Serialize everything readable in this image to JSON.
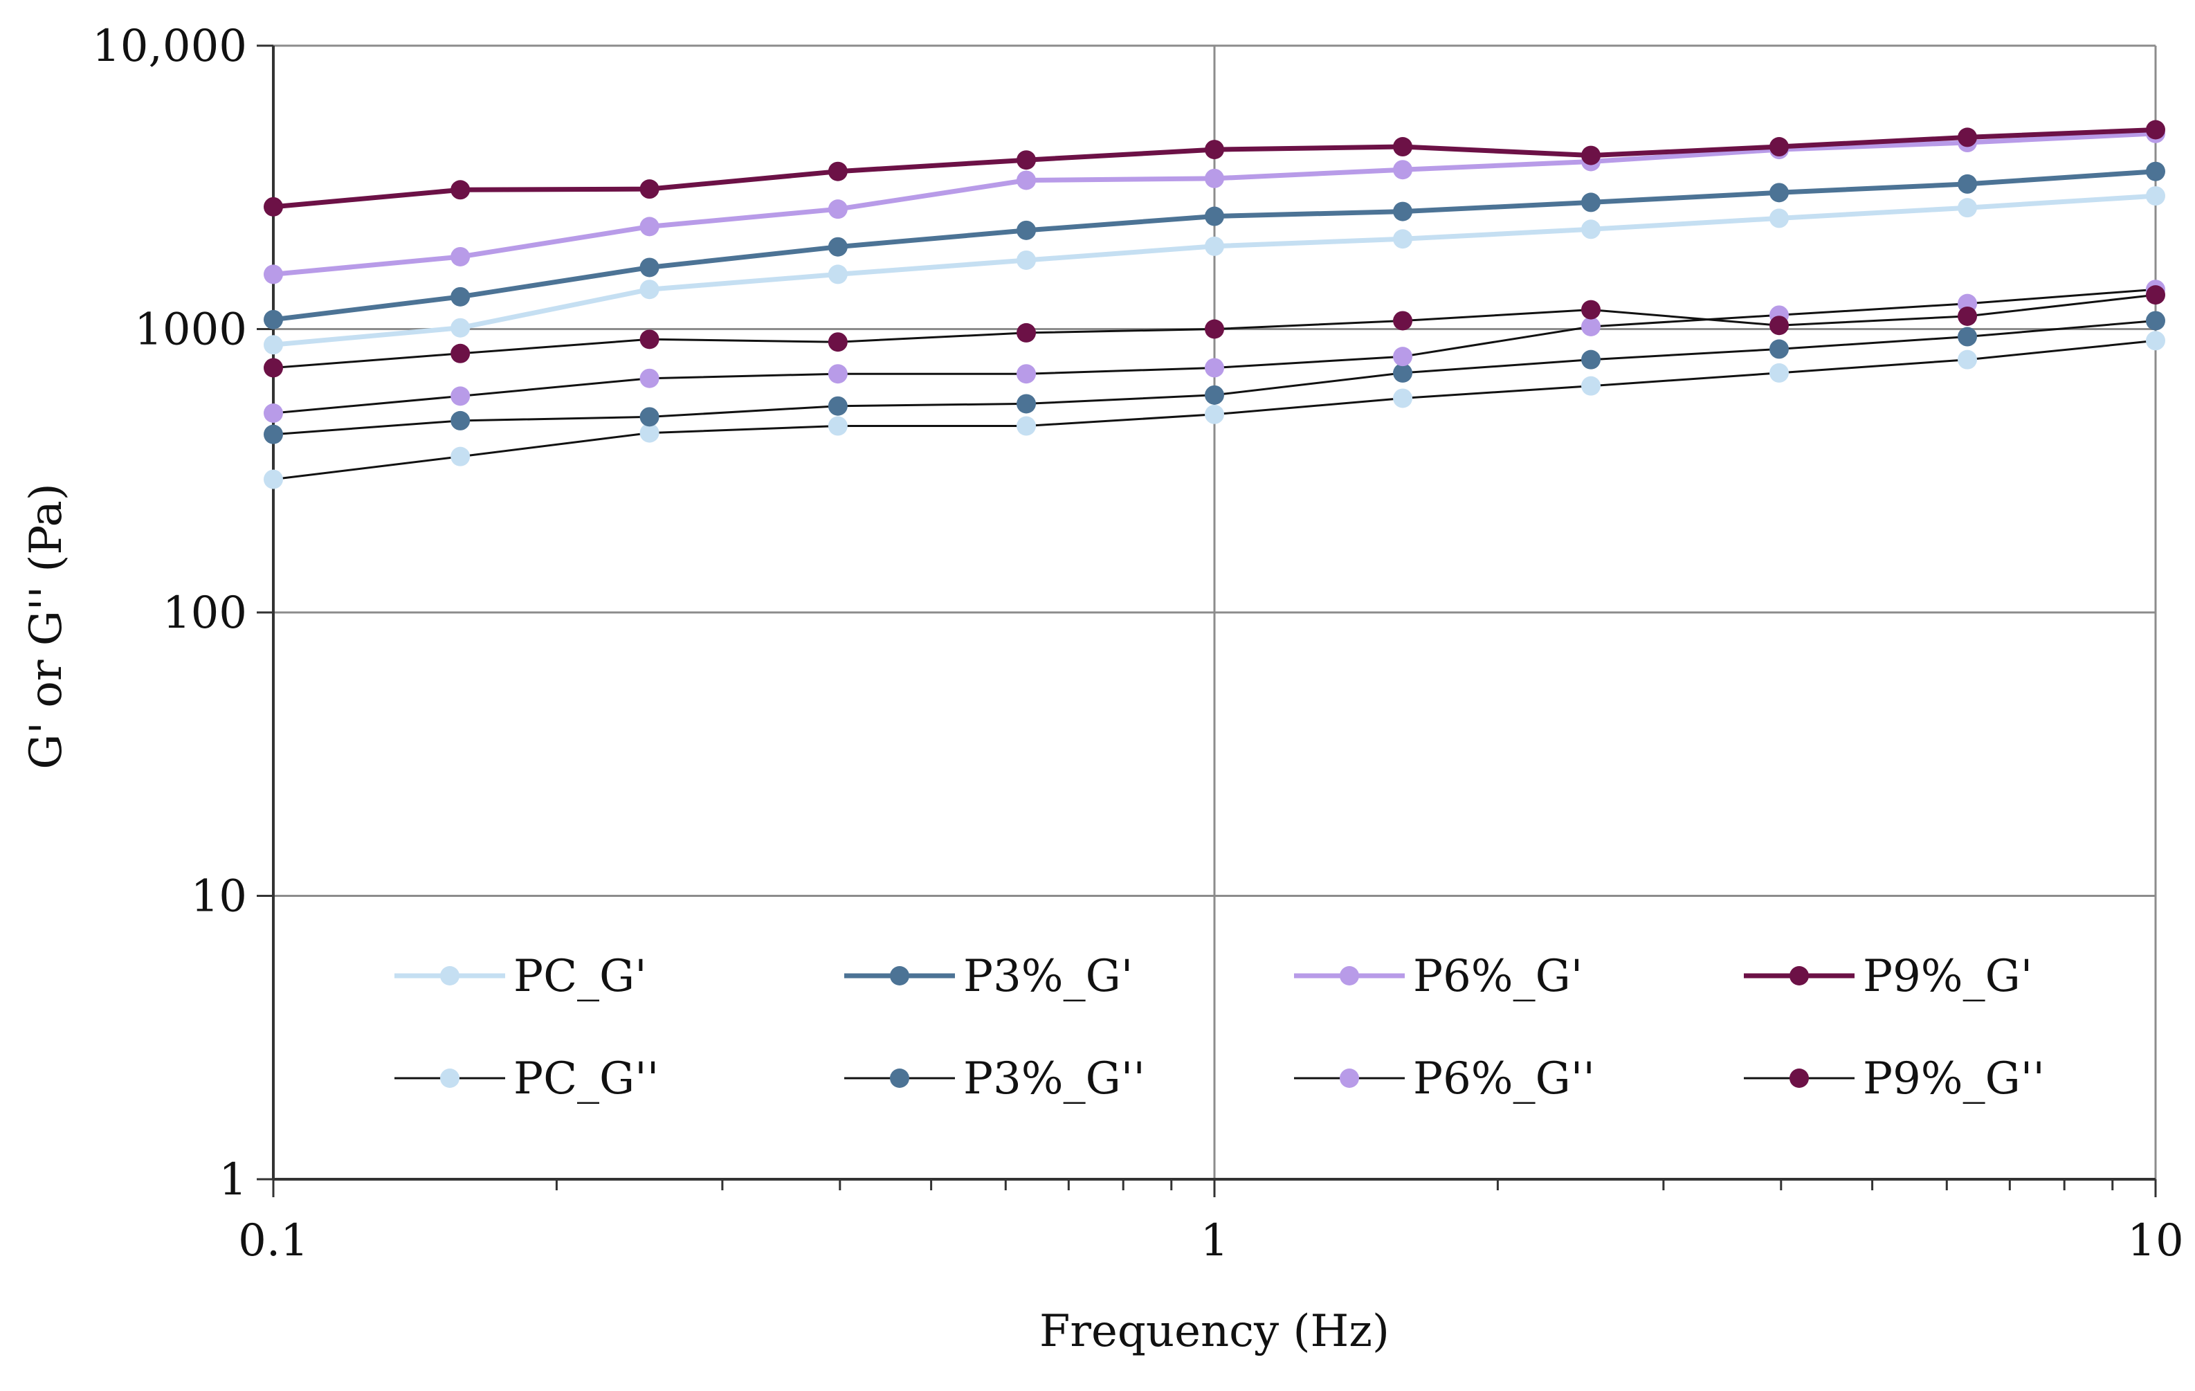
{
  "chart_data": {
    "type": "line",
    "title": "",
    "xlabel": "Frequency (Hz)",
    "ylabel": "G' or G'' (Pa)",
    "xscale": "log",
    "yscale": "log",
    "xlim": [
      0.1,
      10
    ],
    "ylim": [
      1,
      10000
    ],
    "x_ticks": [
      {
        "value": 0.1,
        "label": "0.1"
      },
      {
        "value": 1,
        "label": "1"
      },
      {
        "value": 10,
        "label": "10"
      }
    ],
    "y_ticks": [
      {
        "value": 1,
        "label": "1"
      },
      {
        "value": 10,
        "label": "10"
      },
      {
        "value": 100,
        "label": "100"
      },
      {
        "value": 1000,
        "label": "1000"
      },
      {
        "value": 10000,
        "label": "10,000"
      }
    ],
    "grid": "major gridlines on both axes",
    "legend_position": "inside, lower half, 2 rows × 4 columns",
    "x": [
      0.1,
      0.158,
      0.251,
      0.398,
      0.631,
      1,
      1.585,
      2.512,
      3.981,
      6.31,
      10
    ],
    "series": [
      {
        "name": "PC_G'",
        "color": "#c5dff2",
        "line": "#c5dff2",
        "values": [
          880,
          1010,
          1380,
          1560,
          1750,
          1960,
          2080,
          2250,
          2460,
          2680,
          2950
        ]
      },
      {
        "name": "P3%_G'",
        "color": "#4c7395",
        "line": "#4c7395",
        "values": [
          1080,
          1300,
          1650,
          1950,
          2230,
          2500,
          2600,
          2800,
          3030,
          3250,
          3600
        ]
      },
      {
        "name": "P6%_G'",
        "color": "#b89be8",
        "line": "#b89be8",
        "values": [
          1560,
          1800,
          2300,
          2650,
          3350,
          3400,
          3650,
          3900,
          4300,
          4550,
          4900
        ]
      },
      {
        "name": "P9%_G'",
        "color": "#6c1146",
        "line": "#6c1146",
        "values": [
          2700,
          3100,
          3120,
          3600,
          3950,
          4300,
          4400,
          4100,
          4400,
          4750,
          5050
        ]
      },
      {
        "name": "PC_G''",
        "color": "#c5dff2",
        "line": "#111111",
        "values": [
          295,
          355,
          430,
          455,
          455,
          500,
          570,
          630,
          700,
          780,
          910
        ]
      },
      {
        "name": "P3%_G''",
        "color": "#4c7395",
        "line": "#111111",
        "values": [
          425,
          475,
          490,
          535,
          545,
          585,
          700,
          780,
          850,
          940,
          1070
        ]
      },
      {
        "name": "P6%_G''",
        "color": "#b89be8",
        "line": "#111111",
        "values": [
          505,
          580,
          670,
          695,
          695,
          730,
          800,
          1020,
          1120,
          1230,
          1380
        ]
      },
      {
        "name": "P9%_G''",
        "color": "#6c1146",
        "line": "#111111",
        "values": [
          730,
          820,
          920,
          900,
          970,
          1000,
          1070,
          1170,
          1030,
          1110,
          1320
        ]
      }
    ]
  }
}
